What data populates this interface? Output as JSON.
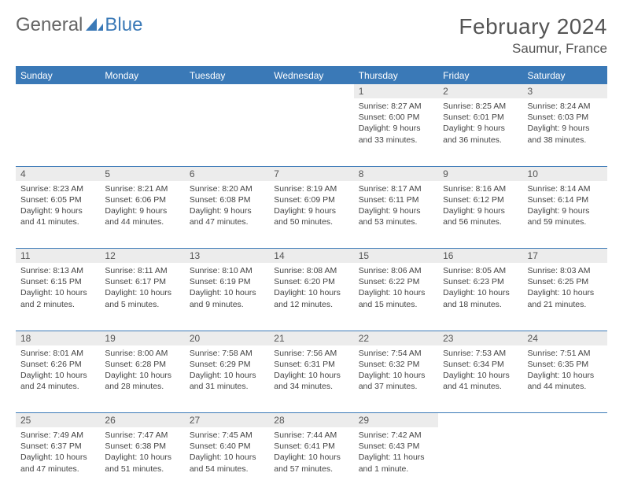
{
  "logo": {
    "text1": "General",
    "text2": "Blue",
    "accent": "#3a79b7"
  },
  "title": "February 2024",
  "location": "Saumur, France",
  "header_bg": "#3a79b7",
  "daynum_bg": "#ececec",
  "weekdays": [
    "Sunday",
    "Monday",
    "Tuesday",
    "Wednesday",
    "Thursday",
    "Friday",
    "Saturday"
  ],
  "weeks": [
    [
      null,
      null,
      null,
      null,
      {
        "n": "1",
        "sunrise": "8:27 AM",
        "sunset": "6:00 PM",
        "daylight": "9 hours and 33 minutes."
      },
      {
        "n": "2",
        "sunrise": "8:25 AM",
        "sunset": "6:01 PM",
        "daylight": "9 hours and 36 minutes."
      },
      {
        "n": "3",
        "sunrise": "8:24 AM",
        "sunset": "6:03 PM",
        "daylight": "9 hours and 38 minutes."
      }
    ],
    [
      {
        "n": "4",
        "sunrise": "8:23 AM",
        "sunset": "6:05 PM",
        "daylight": "9 hours and 41 minutes."
      },
      {
        "n": "5",
        "sunrise": "8:21 AM",
        "sunset": "6:06 PM",
        "daylight": "9 hours and 44 minutes."
      },
      {
        "n": "6",
        "sunrise": "8:20 AM",
        "sunset": "6:08 PM",
        "daylight": "9 hours and 47 minutes."
      },
      {
        "n": "7",
        "sunrise": "8:19 AM",
        "sunset": "6:09 PM",
        "daylight": "9 hours and 50 minutes."
      },
      {
        "n": "8",
        "sunrise": "8:17 AM",
        "sunset": "6:11 PM",
        "daylight": "9 hours and 53 minutes."
      },
      {
        "n": "9",
        "sunrise": "8:16 AM",
        "sunset": "6:12 PM",
        "daylight": "9 hours and 56 minutes."
      },
      {
        "n": "10",
        "sunrise": "8:14 AM",
        "sunset": "6:14 PM",
        "daylight": "9 hours and 59 minutes."
      }
    ],
    [
      {
        "n": "11",
        "sunrise": "8:13 AM",
        "sunset": "6:15 PM",
        "daylight": "10 hours and 2 minutes."
      },
      {
        "n": "12",
        "sunrise": "8:11 AM",
        "sunset": "6:17 PM",
        "daylight": "10 hours and 5 minutes."
      },
      {
        "n": "13",
        "sunrise": "8:10 AM",
        "sunset": "6:19 PM",
        "daylight": "10 hours and 9 minutes."
      },
      {
        "n": "14",
        "sunrise": "8:08 AM",
        "sunset": "6:20 PM",
        "daylight": "10 hours and 12 minutes."
      },
      {
        "n": "15",
        "sunrise": "8:06 AM",
        "sunset": "6:22 PM",
        "daylight": "10 hours and 15 minutes."
      },
      {
        "n": "16",
        "sunrise": "8:05 AM",
        "sunset": "6:23 PM",
        "daylight": "10 hours and 18 minutes."
      },
      {
        "n": "17",
        "sunrise": "8:03 AM",
        "sunset": "6:25 PM",
        "daylight": "10 hours and 21 minutes."
      }
    ],
    [
      {
        "n": "18",
        "sunrise": "8:01 AM",
        "sunset": "6:26 PM",
        "daylight": "10 hours and 24 minutes."
      },
      {
        "n": "19",
        "sunrise": "8:00 AM",
        "sunset": "6:28 PM",
        "daylight": "10 hours and 28 minutes."
      },
      {
        "n": "20",
        "sunrise": "7:58 AM",
        "sunset": "6:29 PM",
        "daylight": "10 hours and 31 minutes."
      },
      {
        "n": "21",
        "sunrise": "7:56 AM",
        "sunset": "6:31 PM",
        "daylight": "10 hours and 34 minutes."
      },
      {
        "n": "22",
        "sunrise": "7:54 AM",
        "sunset": "6:32 PM",
        "daylight": "10 hours and 37 minutes."
      },
      {
        "n": "23",
        "sunrise": "7:53 AM",
        "sunset": "6:34 PM",
        "daylight": "10 hours and 41 minutes."
      },
      {
        "n": "24",
        "sunrise": "7:51 AM",
        "sunset": "6:35 PM",
        "daylight": "10 hours and 44 minutes."
      }
    ],
    [
      {
        "n": "25",
        "sunrise": "7:49 AM",
        "sunset": "6:37 PM",
        "daylight": "10 hours and 47 minutes."
      },
      {
        "n": "26",
        "sunrise": "7:47 AM",
        "sunset": "6:38 PM",
        "daylight": "10 hours and 51 minutes."
      },
      {
        "n": "27",
        "sunrise": "7:45 AM",
        "sunset": "6:40 PM",
        "daylight": "10 hours and 54 minutes."
      },
      {
        "n": "28",
        "sunrise": "7:44 AM",
        "sunset": "6:41 PM",
        "daylight": "10 hours and 57 minutes."
      },
      {
        "n": "29",
        "sunrise": "7:42 AM",
        "sunset": "6:43 PM",
        "daylight": "11 hours and 1 minute."
      },
      null,
      null
    ]
  ],
  "labels": {
    "sunrise": "Sunrise: ",
    "sunset": "Sunset: ",
    "daylight": "Daylight: "
  }
}
